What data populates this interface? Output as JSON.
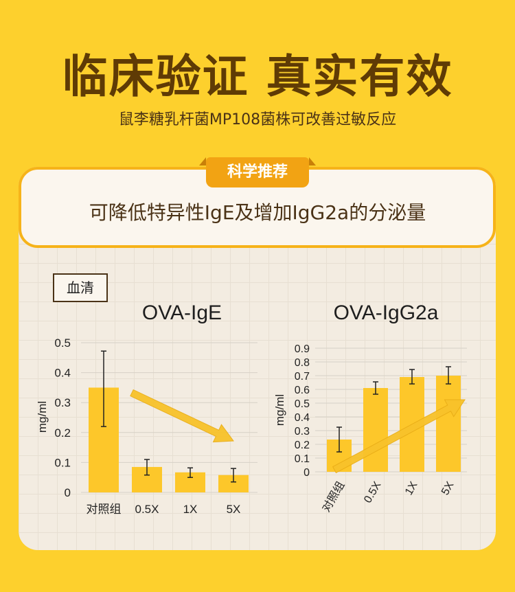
{
  "header": {
    "title": "临床验证 真实有效",
    "subtitle": "鼠李糖乳杆菌MP108菌株可改善过敏反应"
  },
  "tag": {
    "label": "科学推荐"
  },
  "banner": {
    "text": "可降低特异性IgE及增加IgG2a的分泌量"
  },
  "serum_label": "血清",
  "colors": {
    "bar": "#fdc72a",
    "arrow": "#f8c22a",
    "accent": "#f2a313",
    "border": "#f6b319"
  },
  "chart_data": [
    {
      "type": "bar",
      "title": "OVA-IgE",
      "ylabel": "mg/ml",
      "categories": [
        "对照组",
        "0.5X",
        "1X",
        "5X"
      ],
      "values": [
        0.35,
        0.085,
        0.067,
        0.058
      ],
      "error_low": [
        0.22,
        0.058,
        0.05,
        0.035
      ],
      "error_high": [
        0.472,
        0.11,
        0.082,
        0.08
      ],
      "ylim": [
        0,
        0.5
      ],
      "yticks": [
        "0",
        "0.1",
        "0.2",
        "0.3",
        "0.4",
        "0.5"
      ],
      "trend": "down",
      "grid": true
    },
    {
      "type": "bar",
      "title": "OVA-IgG2a",
      "ylabel": "mg/ml",
      "categories": [
        "对照组",
        "0.5X",
        "1X",
        "5X"
      ],
      "values": [
        0.235,
        0.61,
        0.69,
        0.7
      ],
      "error_low": [
        0.145,
        0.565,
        0.64,
        0.64
      ],
      "error_high": [
        0.325,
        0.655,
        0.745,
        0.765
      ],
      "ylim": [
        0,
        0.9
      ],
      "yticks": [
        "0",
        "0.1",
        "0.2",
        "0.3",
        "0.4",
        "0.5",
        "0.6",
        "0.7",
        "0.8",
        "0.9"
      ],
      "trend": "up",
      "grid": true
    }
  ]
}
